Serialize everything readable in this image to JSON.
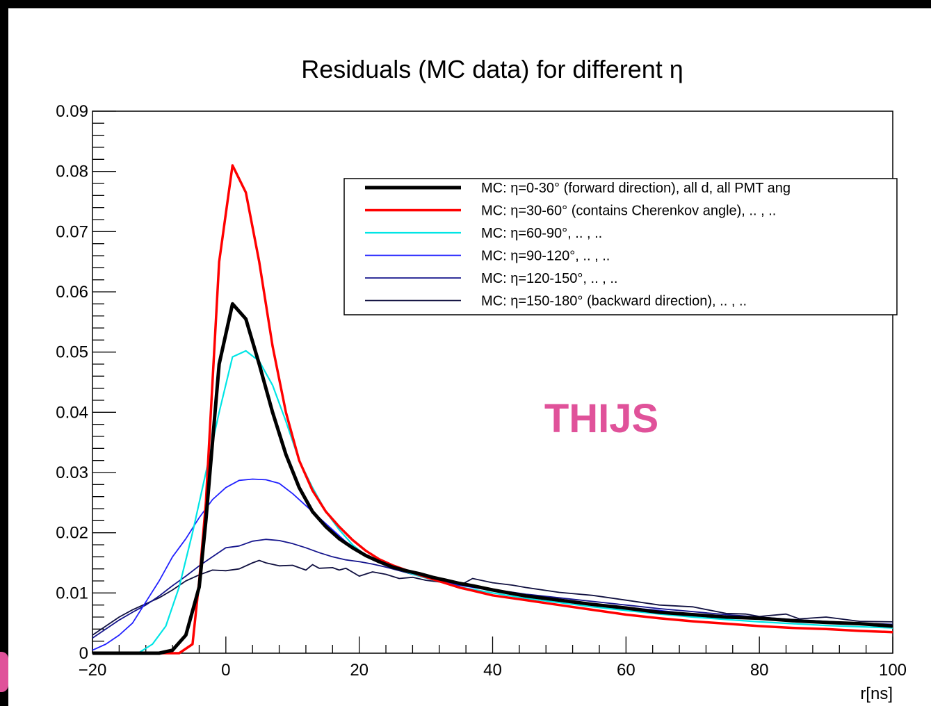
{
  "chart_data": {
    "type": "line",
    "title": "Residuals (MC data) for different η",
    "xlabel": "r[ns]",
    "ylabel": "",
    "xlim": [
      -20,
      100
    ],
    "ylim": [
      0,
      0.09
    ],
    "x_ticks": [
      -20,
      0,
      20,
      40,
      60,
      80,
      100
    ],
    "x_tick_labels": [
      "−20",
      "0",
      "20",
      "40",
      "60",
      "80",
      "100"
    ],
    "y_ticks": [
      0,
      0.01,
      0.02,
      0.03,
      0.04,
      0.05,
      0.06,
      0.07,
      0.08,
      0.09
    ],
    "y_tick_labels": [
      "0",
      "0.01",
      "0.02",
      "0.03",
      "0.04",
      "0.05",
      "0.06",
      "0.07",
      "0.08",
      "0.09"
    ],
    "grid": false,
    "legend_position": "top-right",
    "annotation": "THIJS",
    "series": [
      {
        "name": "MC: η=0-30° (forward direction), all d, all PMT ang",
        "color": "#000000",
        "width": 5,
        "points": [
          [
            -20,
            0
          ],
          [
            -10,
            0
          ],
          [
            -8,
            0.0005
          ],
          [
            -6,
            0.003
          ],
          [
            -4,
            0.011
          ],
          [
            -3,
            0.022
          ],
          [
            -2,
            0.035
          ],
          [
            -1,
            0.048
          ],
          [
            1,
            0.058
          ],
          [
            3,
            0.0555
          ],
          [
            5,
            0.048
          ],
          [
            7,
            0.04
          ],
          [
            9,
            0.033
          ],
          [
            11,
            0.0275
          ],
          [
            13,
            0.0235
          ],
          [
            15,
            0.021
          ],
          [
            17,
            0.019
          ],
          [
            19,
            0.0175
          ],
          [
            21,
            0.0162
          ],
          [
            23,
            0.0152
          ],
          [
            25,
            0.0143
          ],
          [
            27,
            0.0137
          ],
          [
            29,
            0.0132
          ],
          [
            31,
            0.0126
          ],
          [
            33,
            0.0121
          ],
          [
            35,
            0.0116
          ],
          [
            37,
            0.0112
          ],
          [
            40,
            0.0105
          ],
          [
            45,
            0.0095
          ],
          [
            50,
            0.0088
          ],
          [
            55,
            0.0081
          ],
          [
            60,
            0.0075
          ],
          [
            65,
            0.0068
          ],
          [
            70,
            0.0064
          ],
          [
            75,
            0.006
          ],
          [
            80,
            0.0058
          ],
          [
            85,
            0.0054
          ],
          [
            90,
            0.0051
          ],
          [
            95,
            0.0049
          ],
          [
            100,
            0.0045
          ]
        ]
      },
      {
        "name": "MC: η=30-60° (contains Cherenkov angle), .. , ..",
        "color": "#ff0000",
        "width": 3.5,
        "points": [
          [
            -20,
            0
          ],
          [
            -7,
            0
          ],
          [
            -5,
            0.0015
          ],
          [
            -4,
            0.012
          ],
          [
            -3,
            0.025
          ],
          [
            -2,
            0.045
          ],
          [
            -1,
            0.065
          ],
          [
            1,
            0.081
          ],
          [
            3,
            0.0765
          ],
          [
            5,
            0.065
          ],
          [
            7,
            0.051
          ],
          [
            9,
            0.04
          ],
          [
            11,
            0.032
          ],
          [
            13,
            0.027
          ],
          [
            15,
            0.0235
          ],
          [
            17,
            0.021
          ],
          [
            19,
            0.0188
          ],
          [
            21,
            0.017
          ],
          [
            23,
            0.0156
          ],
          [
            25,
            0.0146
          ],
          [
            27,
            0.0138
          ],
          [
            29,
            0.013
          ],
          [
            31,
            0.0123
          ],
          [
            33,
            0.0116
          ],
          [
            35,
            0.0109
          ],
          [
            37,
            0.0104
          ],
          [
            40,
            0.0096
          ],
          [
            45,
            0.0088
          ],
          [
            50,
            0.008
          ],
          [
            55,
            0.0072
          ],
          [
            60,
            0.0064
          ],
          [
            65,
            0.0058
          ],
          [
            70,
            0.0053
          ],
          [
            75,
            0.0049
          ],
          [
            80,
            0.0045
          ],
          [
            85,
            0.0042
          ],
          [
            90,
            0.004
          ],
          [
            95,
            0.0037
          ],
          [
            100,
            0.0035
          ]
        ]
      },
      {
        "name": "MC: η=60-90°, .. , ..",
        "color": "#00e5e5",
        "width": 2.2,
        "points": [
          [
            -20,
            0
          ],
          [
            -13,
            0.0001
          ],
          [
            -11,
            0.0015
          ],
          [
            -9,
            0.0045
          ],
          [
            -7,
            0.011
          ],
          [
            -5,
            0.02
          ],
          [
            -3,
            0.03
          ],
          [
            -1,
            0.04
          ],
          [
            1,
            0.0492
          ],
          [
            3,
            0.0502
          ],
          [
            5,
            0.0485
          ],
          [
            7,
            0.0445
          ],
          [
            9,
            0.0385
          ],
          [
            11,
            0.032
          ],
          [
            13,
            0.0275
          ],
          [
            15,
            0.0235
          ],
          [
            17,
            0.0205
          ],
          [
            19,
            0.018
          ],
          [
            21,
            0.0162
          ],
          [
            23,
            0.0152
          ],
          [
            25,
            0.0142
          ],
          [
            27,
            0.0135
          ],
          [
            29,
            0.0128
          ],
          [
            31,
            0.0122
          ],
          [
            33,
            0.0116
          ],
          [
            35,
            0.011
          ],
          [
            37,
            0.0106
          ],
          [
            40,
            0.01
          ],
          [
            45,
            0.0091
          ],
          [
            50,
            0.0084
          ],
          [
            55,
            0.0077
          ],
          [
            60,
            0.0071
          ],
          [
            65,
            0.0065
          ],
          [
            70,
            0.006
          ],
          [
            75,
            0.0056
          ],
          [
            80,
            0.0052
          ],
          [
            85,
            0.0049
          ],
          [
            90,
            0.0046
          ],
          [
            95,
            0.0044
          ],
          [
            100,
            0.0042
          ]
        ]
      },
      {
        "name": "MC: η=90-120°, .. , ..",
        "color": "#2020ff",
        "width": 1.8,
        "points": [
          [
            -20,
            0.0005
          ],
          [
            -18,
            0.0015
          ],
          [
            -16,
            0.003
          ],
          [
            -14,
            0.005
          ],
          [
            -12,
            0.0085
          ],
          [
            -10,
            0.012
          ],
          [
            -8,
            0.016
          ],
          [
            -6,
            0.019
          ],
          [
            -4,
            0.0225
          ],
          [
            -2,
            0.0255
          ],
          [
            0,
            0.0275
          ],
          [
            2,
            0.0287
          ],
          [
            4,
            0.0289
          ],
          [
            6,
            0.0288
          ],
          [
            8,
            0.0282
          ],
          [
            10,
            0.0265
          ],
          [
            12,
            0.0245
          ],
          [
            14,
            0.0225
          ],
          [
            16,
            0.0205
          ],
          [
            18,
            0.0185
          ],
          [
            20,
            0.017
          ],
          [
            22,
            0.0158
          ],
          [
            24,
            0.0148
          ],
          [
            26,
            0.014
          ],
          [
            28,
            0.0133
          ],
          [
            30,
            0.0126
          ],
          [
            32,
            0.012
          ],
          [
            35,
            0.0113
          ],
          [
            40,
            0.0104
          ],
          [
            45,
            0.0096
          ],
          [
            50,
            0.0089
          ],
          [
            55,
            0.0082
          ],
          [
            60,
            0.0076
          ],
          [
            65,
            0.0071
          ],
          [
            70,
            0.0065
          ],
          [
            75,
            0.0061
          ],
          [
            80,
            0.0058
          ],
          [
            85,
            0.0054
          ],
          [
            90,
            0.0051
          ],
          [
            95,
            0.0048
          ],
          [
            100,
            0.0047
          ]
        ]
      },
      {
        "name": "MC: η=120-150°, .. , ..",
        "color": "#14148c",
        "width": 1.8,
        "points": [
          [
            -20,
            0.0025
          ],
          [
            -18,
            0.004
          ],
          [
            -16,
            0.0055
          ],
          [
            -14,
            0.0068
          ],
          [
            -12,
            0.008
          ],
          [
            -10,
            0.0095
          ],
          [
            -8,
            0.0112
          ],
          [
            -6,
            0.0128
          ],
          [
            -4,
            0.0145
          ],
          [
            -2,
            0.016
          ],
          [
            0,
            0.0175
          ],
          [
            2,
            0.0178
          ],
          [
            4,
            0.0186
          ],
          [
            6,
            0.0189
          ],
          [
            8,
            0.0187
          ],
          [
            10,
            0.0182
          ],
          [
            12,
            0.0175
          ],
          [
            14,
            0.0167
          ],
          [
            16,
            0.016
          ],
          [
            18,
            0.0155
          ],
          [
            20,
            0.0152
          ],
          [
            22,
            0.0148
          ],
          [
            24,
            0.0143
          ],
          [
            26,
            0.0137
          ],
          [
            28,
            0.0131
          ],
          [
            30,
            0.0125
          ],
          [
            32,
            0.0119
          ],
          [
            35,
            0.0113
          ],
          [
            40,
            0.0106
          ],
          [
            45,
            0.0098
          ],
          [
            50,
            0.0092
          ],
          [
            55,
            0.0086
          ],
          [
            60,
            0.008
          ],
          [
            65,
            0.0074
          ],
          [
            70,
            0.0069
          ],
          [
            75,
            0.0064
          ],
          [
            80,
            0.006
          ],
          [
            85,
            0.0056
          ],
          [
            90,
            0.0053
          ],
          [
            95,
            0.005
          ],
          [
            100,
            0.0048
          ]
        ]
      },
      {
        "name": "MC: η=150-180° (backward direction), .. , ..",
        "color": "#101040",
        "width": 1.8,
        "points": [
          [
            -20,
            0.003
          ],
          [
            -18,
            0.0045
          ],
          [
            -16,
            0.006
          ],
          [
            -14,
            0.0072
          ],
          [
            -12,
            0.0082
          ],
          [
            -10,
            0.0092
          ],
          [
            -8,
            0.0105
          ],
          [
            -6,
            0.012
          ],
          [
            -4,
            0.013
          ],
          [
            -2,
            0.0138
          ],
          [
            0,
            0.0137
          ],
          [
            2,
            0.014
          ],
          [
            4,
            0.015
          ],
          [
            5,
            0.0154
          ],
          [
            6,
            0.015
          ],
          [
            8,
            0.0145
          ],
          [
            10,
            0.0146
          ],
          [
            12,
            0.0138
          ],
          [
            13,
            0.0147
          ],
          [
            14,
            0.0141
          ],
          [
            16,
            0.0142
          ],
          [
            17,
            0.0138
          ],
          [
            18,
            0.0141
          ],
          [
            20,
            0.0128
          ],
          [
            22,
            0.0135
          ],
          [
            24,
            0.0131
          ],
          [
            26,
            0.0124
          ],
          [
            28,
            0.0126
          ],
          [
            30,
            0.0121
          ],
          [
            33,
            0.0117
          ],
          [
            35,
            0.0112
          ],
          [
            37,
            0.0124
          ],
          [
            40,
            0.0117
          ],
          [
            43,
            0.0113
          ],
          [
            45,
            0.0109
          ],
          [
            50,
            0.0101
          ],
          [
            55,
            0.0096
          ],
          [
            60,
            0.0088
          ],
          [
            65,
            0.008
          ],
          [
            70,
            0.0077
          ],
          [
            75,
            0.0066
          ],
          [
            78,
            0.0065
          ],
          [
            80,
            0.0061
          ],
          [
            84,
            0.0065
          ],
          [
            86,
            0.0057
          ],
          [
            90,
            0.006
          ],
          [
            95,
            0.0053
          ],
          [
            100,
            0.0052
          ]
        ]
      }
    ]
  }
}
